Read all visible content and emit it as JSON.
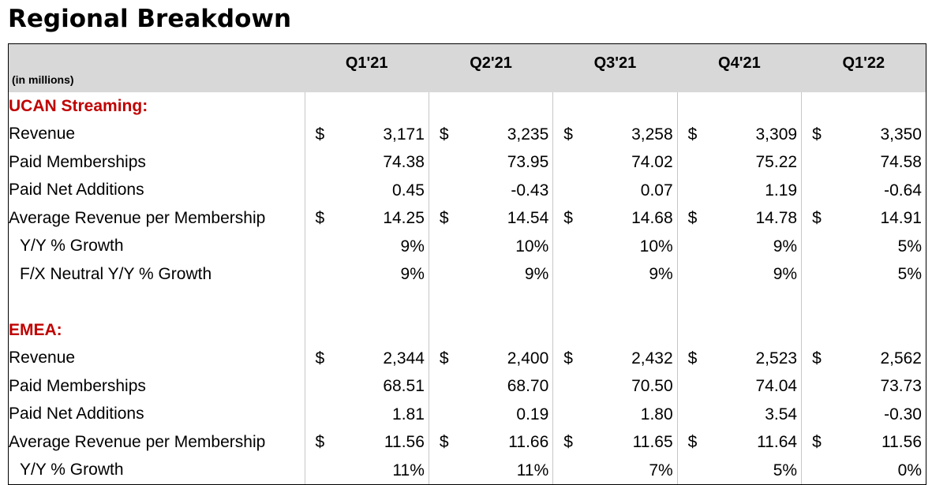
{
  "title": "Regional Breakdown",
  "units_label": "(in millions)",
  "quarters": [
    "Q1'21",
    "Q2'21",
    "Q3'21",
    "Q4'21",
    "Q1'22"
  ],
  "rows": [
    {
      "type": "section",
      "label": "UCAN Streaming:"
    },
    {
      "type": "data",
      "label": "Revenue",
      "currency": "$",
      "values": [
        "3,171",
        "3,235",
        "3,258",
        "3,309",
        "3,350"
      ]
    },
    {
      "type": "data",
      "label": "Paid Memberships",
      "currency": "",
      "values": [
        "74.38",
        "73.95",
        "74.02",
        "75.22",
        "74.58"
      ]
    },
    {
      "type": "data",
      "label": "Paid Net Additions",
      "currency": "",
      "values": [
        "0.45",
        "-0.43",
        "0.07",
        "1.19",
        "-0.64"
      ]
    },
    {
      "type": "data",
      "label": "Average Revenue per Membership",
      "currency": "$",
      "values": [
        "14.25",
        "14.54",
        "14.68",
        "14.78",
        "14.91"
      ]
    },
    {
      "type": "data",
      "label": "Y/Y % Growth",
      "indent": true,
      "currency": "",
      "values": [
        "9%",
        "10%",
        "10%",
        "9%",
        "5%"
      ]
    },
    {
      "type": "data",
      "label": "F/X Neutral Y/Y % Growth",
      "indent": true,
      "currency": "",
      "values": [
        "9%",
        "9%",
        "9%",
        "9%",
        "5%"
      ]
    },
    {
      "type": "blank",
      "label": ""
    },
    {
      "type": "section",
      "label": "EMEA:"
    },
    {
      "type": "data",
      "label": "Revenue",
      "currency": "$",
      "values": [
        "2,344",
        "2,400",
        "2,432",
        "2,523",
        "2,562"
      ]
    },
    {
      "type": "data",
      "label": "Paid Memberships",
      "currency": "",
      "values": [
        "68.51",
        "68.70",
        "70.50",
        "74.04",
        "73.73"
      ]
    },
    {
      "type": "data",
      "label": "Paid Net Additions",
      "currency": "",
      "values": [
        "1.81",
        "0.19",
        "1.80",
        "3.54",
        "-0.30"
      ]
    },
    {
      "type": "data",
      "label": "Average Revenue per Membership",
      "currency": "$",
      "values": [
        "11.56",
        "11.66",
        "11.65",
        "11.64",
        "11.56"
      ]
    },
    {
      "type": "data",
      "label": "Y/Y % Growth",
      "indent": true,
      "currency": "",
      "values": [
        "11%",
        "11%",
        "7%",
        "5%",
        "0%"
      ]
    }
  ],
  "colors": {
    "section_label": "#c00000",
    "header_bg": "#d8d8d8"
  }
}
